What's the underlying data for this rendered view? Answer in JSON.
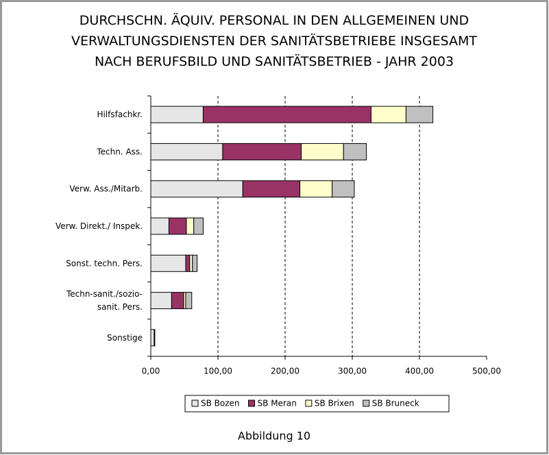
{
  "chart_data": {
    "type": "bar",
    "orientation": "horizontal",
    "stacked": true,
    "title": "DURCHSCHN. ÄQUIV. PERSONAL IN DEN ALLGEMEINEN UND\nVERWALTUNGSDIENSTEN DER SANITÄTSBETRIEBE INSGESAMT\nNACH BERUFSBILD UND SANITÄTSBETRIEB - JAHR 2003",
    "caption": "Abbildung 10",
    "categories": [
      "Hilfsfachkr.",
      "Techn. Ass.",
      "Verw. Ass./Mitarb.",
      "Verw. Direkt./ Inspek.",
      "Sonst. techn. Pers.",
      "Techn-sanit./sozio-\nsanit. Pers.",
      "Sonstige"
    ],
    "series": [
      {
        "name": "SB Bozen",
        "color": "#e6e6e6",
        "values": [
          78,
          107,
          137,
          27,
          52,
          31,
          5
        ]
      },
      {
        "name": "SB Meran",
        "color": "#993366",
        "values": [
          250,
          117,
          85,
          26,
          6,
          18,
          1
        ]
      },
      {
        "name": "SB Brixen",
        "color": "#ffffcc",
        "values": [
          52,
          63,
          48,
          11,
          4,
          3,
          0
        ]
      },
      {
        "name": "SB Bruneck",
        "color": "#c0c0c0",
        "values": [
          40,
          34,
          33,
          14,
          7,
          9,
          0
        ]
      }
    ],
    "xlim": [
      0,
      500
    ],
    "xticks": [
      {
        "value": 0,
        "label": "0,00"
      },
      {
        "value": 100,
        "label": "100,00"
      },
      {
        "value": 200,
        "label": "200,00"
      },
      {
        "value": 300,
        "label": "300,00"
      },
      {
        "value": 400,
        "label": "400,00"
      },
      {
        "value": 500,
        "label": "500,00"
      }
    ],
    "grid": true,
    "legend": "bottom"
  }
}
